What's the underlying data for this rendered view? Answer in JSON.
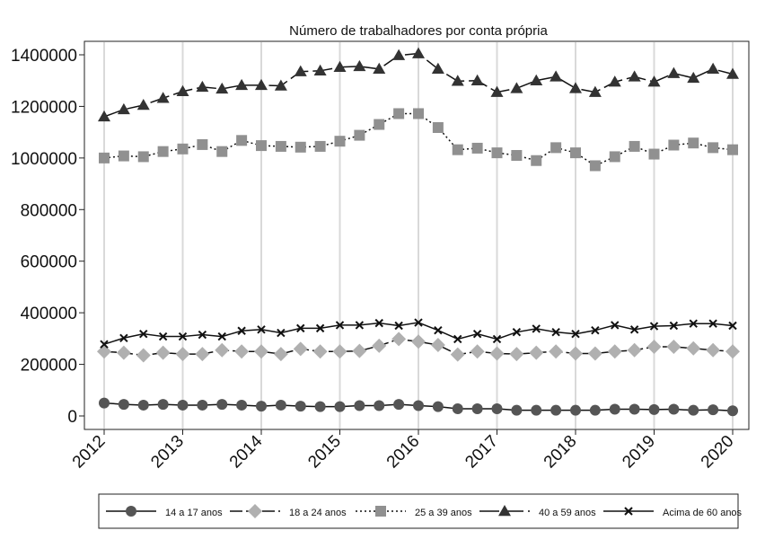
{
  "chart_data": {
    "type": "line",
    "title": "Número de trabalhadores por conta própria",
    "xlabel": "",
    "ylabel": "",
    "xlim": [
      2012,
      2020
    ],
    "ylim": [
      0,
      1400000
    ],
    "x_ticks": [
      "2012",
      "2013",
      "2014",
      "2015",
      "2016",
      "2017",
      "2018",
      "2019",
      "2020"
    ],
    "y_ticks": [
      "0",
      "200000",
      "400000",
      "600000",
      "800000",
      "1000000",
      "1200000",
      "1400000"
    ],
    "grid": "vertical",
    "legend_position": "bottom",
    "x": [
      2012.0,
      2012.25,
      2012.5,
      2012.75,
      2013.0,
      2013.25,
      2013.5,
      2013.75,
      2014.0,
      2014.25,
      2014.5,
      2014.75,
      2015.0,
      2015.25,
      2015.5,
      2015.75,
      2016.0,
      2016.25,
      2016.5,
      2016.75,
      2017.0,
      2017.25,
      2017.5,
      2017.75,
      2018.0,
      2018.25,
      2018.5,
      2018.75,
      2019.0,
      2019.25,
      2019.5,
      2019.75,
      2020.0
    ],
    "series": [
      {
        "name": "14 a 17 anos",
        "marker": "circle",
        "dash": "",
        "values": [
          50000,
          45000,
          42000,
          45000,
          42000,
          42000,
          45000,
          42000,
          38000,
          42000,
          38000,
          36000,
          36000,
          40000,
          40000,
          45000,
          40000,
          36000,
          28000,
          28000,
          28000,
          22000,
          22000,
          22000,
          22000,
          22000,
          26000,
          26000,
          25000,
          26000,
          22000,
          24000,
          20000
        ]
      },
      {
        "name": "18 a 24 anos",
        "marker": "diamond",
        "dash": "14 4",
        "values": [
          250000,
          245000,
          235000,
          245000,
          240000,
          240000,
          255000,
          250000,
          250000,
          240000,
          260000,
          250000,
          250000,
          252000,
          272000,
          298000,
          288000,
          275000,
          238000,
          250000,
          242000,
          240000,
          245000,
          250000,
          242000,
          242000,
          250000,
          255000,
          268000,
          268000,
          262000,
          255000,
          250000
        ]
      },
      {
        "name": "25 a 39 anos",
        "marker": "square",
        "dash": "2 3",
        "values": [
          1000000,
          1008000,
          1005000,
          1025000,
          1035000,
          1052000,
          1025000,
          1068000,
          1048000,
          1045000,
          1042000,
          1045000,
          1065000,
          1088000,
          1130000,
          1172000,
          1172000,
          1118000,
          1032000,
          1038000,
          1020000,
          1010000,
          990000,
          1040000,
          1020000,
          970000,
          1005000,
          1045000,
          1015000,
          1050000,
          1058000,
          1040000,
          1032000
        ]
      },
      {
        "name": "40 a 59 anos",
        "marker": "triangle",
        "dash": "22 5",
        "values": [
          1160000,
          1188000,
          1205000,
          1232000,
          1258000,
          1275000,
          1268000,
          1282000,
          1282000,
          1280000,
          1335000,
          1338000,
          1352000,
          1355000,
          1345000,
          1398000,
          1405000,
          1345000,
          1298000,
          1300000,
          1255000,
          1270000,
          1300000,
          1315000,
          1270000,
          1255000,
          1295000,
          1315000,
          1295000,
          1328000,
          1310000,
          1345000,
          1325000
        ]
      },
      {
        "name": "Acima de 60 anos",
        "marker": "x",
        "dash": "",
        "values": [
          278000,
          302000,
          318000,
          308000,
          308000,
          315000,
          308000,
          330000,
          335000,
          322000,
          340000,
          340000,
          352000,
          352000,
          360000,
          350000,
          362000,
          332000,
          298000,
          318000,
          298000,
          325000,
          338000,
          325000,
          318000,
          332000,
          352000,
          335000,
          348000,
          350000,
          358000,
          358000,
          350000
        ]
      }
    ]
  }
}
